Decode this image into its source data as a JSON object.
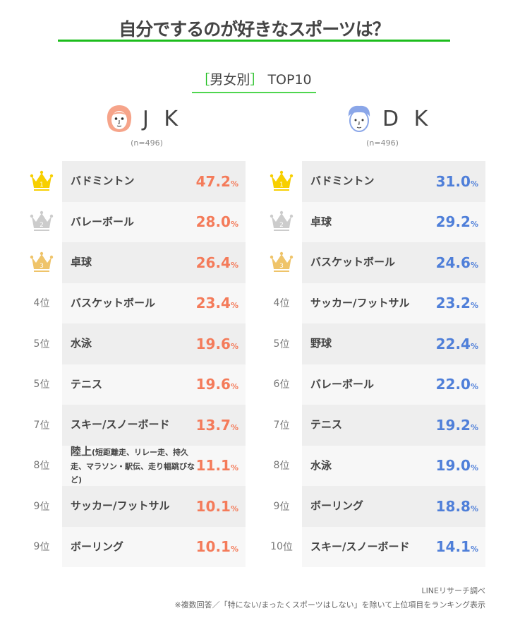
{
  "title": "自分でするのが好きなスポーツは？",
  "subtitle": {
    "bracket_open": "［",
    "label": "男女別",
    "bracket_close": "］",
    "suffix": "TOP10"
  },
  "colors": {
    "accent_green": "#1cbd1c",
    "jk_value": "#f47b5a",
    "dk_value": "#4f7fd9",
    "gold": "#f7cf00",
    "silver": "#cccccc",
    "bronze": "#efc46a"
  },
  "rank_suffix": "位",
  "percent_sign": "%",
  "chart_data": {
    "type": "table",
    "groups": [
      {
        "label": "J K",
        "icon": "girl-face-icon",
        "n": "(n=496)",
        "rows": [
          {
            "rank": 1,
            "name": "バドミントン",
            "value": 47.2
          },
          {
            "rank": 2,
            "name": "バレーボール",
            "value": 28.0
          },
          {
            "rank": 3,
            "name": "卓球",
            "value": 26.4
          },
          {
            "rank": 4,
            "name": "バスケットボール",
            "value": 23.4
          },
          {
            "rank": 5,
            "name": "水泳",
            "value": 19.6
          },
          {
            "rank": 5,
            "name": "テニス",
            "value": 19.6
          },
          {
            "rank": 7,
            "name": "スキー/スノーボード",
            "value": 13.7
          },
          {
            "rank": 8,
            "name": "陸上",
            "note": "(短距離走、リレー走、持久走、マラソン・駅伝、走り幅跳びなど)",
            "value": 11.1
          },
          {
            "rank": 9,
            "name": "サッカー/フットサル",
            "value": 10.1
          },
          {
            "rank": 9,
            "name": "ボーリング",
            "value": 10.1
          }
        ]
      },
      {
        "label": "D K",
        "icon": "boy-face-icon",
        "n": "(n=496)",
        "rows": [
          {
            "rank": 1,
            "name": "バドミントン",
            "value": 31.0
          },
          {
            "rank": 2,
            "name": "卓球",
            "value": 29.2
          },
          {
            "rank": 3,
            "name": "バスケットボール",
            "value": 24.6
          },
          {
            "rank": 4,
            "name": "サッカー/フットサル",
            "value": 23.2
          },
          {
            "rank": 5,
            "name": "野球",
            "value": 22.4
          },
          {
            "rank": 6,
            "name": "バレーボール",
            "value": 22.0
          },
          {
            "rank": 7,
            "name": "テニス",
            "value": 19.2
          },
          {
            "rank": 8,
            "name": "水泳",
            "value": 19.0
          },
          {
            "rank": 9,
            "name": "ボーリング",
            "value": 18.8
          },
          {
            "rank": 10,
            "name": "スキー/スノーボード",
            "value": 14.1
          }
        ]
      }
    ]
  },
  "footer": {
    "source": "LINEリサーチ調べ",
    "note": "※複数回答／「特にない/まったくスポーツはしない」を除いて上位項目をランキング表示"
  }
}
